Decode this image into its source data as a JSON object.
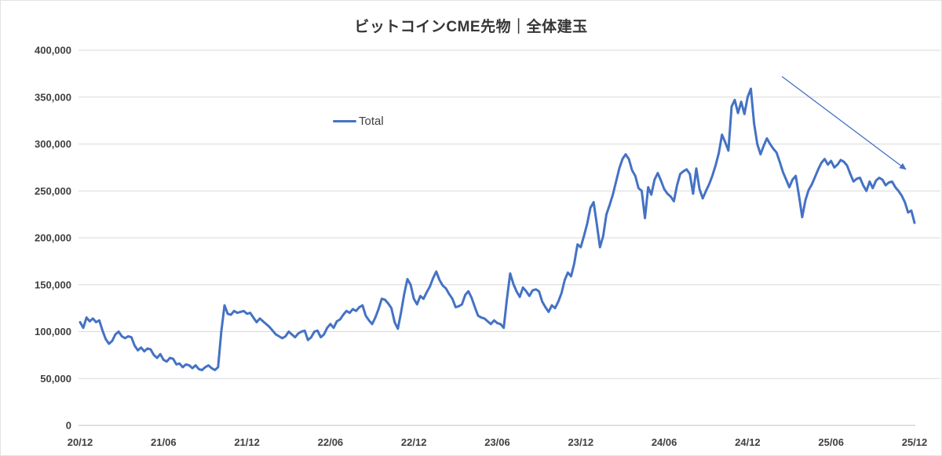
{
  "chart": {
    "background": "#ffffff",
    "colors": {
      "series_line": "#4472C4",
      "gridline": "#d9d9d9",
      "axis_line": "#bfbfbf",
      "tick_label": "#404040",
      "title": "#363636",
      "annotation_arrow": "#4472C4"
    }
  },
  "chart_data": {
    "type": "line",
    "title": "ビットコインCME先物｜全体建玉",
    "xlabel": "",
    "ylabel": "",
    "ylim": [
      0,
      400000
    ],
    "grid": "horizontal",
    "legend_position": "inside-top-left-of-center",
    "y_ticks": [
      0,
      50000,
      100000,
      150000,
      200000,
      250000,
      300000,
      350000,
      400000
    ],
    "x_tick_labels": [
      "20/12",
      "21/06",
      "21/12",
      "22/06",
      "22/12",
      "23/06",
      "23/12",
      "24/06",
      "24/12",
      "25/06",
      "25/12"
    ],
    "x_tick_every": 26,
    "x_unit": "week (YY/MM)",
    "series": [
      {
        "name": "Total",
        "color": "#4472C4",
        "values": [
          110000,
          104000,
          115000,
          111000,
          114000,
          110000,
          112000,
          101000,
          92000,
          87000,
          90000,
          97000,
          100000,
          95000,
          93000,
          95000,
          94000,
          85000,
          80000,
          83000,
          79000,
          82000,
          81000,
          75000,
          72000,
          76000,
          70000,
          68000,
          72000,
          71000,
          65000,
          66000,
          62000,
          65000,
          64000,
          61000,
          64000,
          60000,
          59000,
          62000,
          64000,
          61000,
          59000,
          62000,
          100000,
          128000,
          119000,
          118000,
          122000,
          120000,
          121000,
          122000,
          119000,
          120000,
          115000,
          110000,
          114000,
          111000,
          108000,
          105000,
          101000,
          97000,
          95000,
          93000,
          95000,
          100000,
          97000,
          94000,
          98000,
          100000,
          101000,
          91000,
          94000,
          100000,
          101000,
          94000,
          97000,
          104000,
          108000,
          104000,
          111000,
          113000,
          118000,
          122000,
          120000,
          124000,
          122000,
          126000,
          128000,
          117000,
          112000,
          108000,
          115000,
          124000,
          135000,
          134000,
          130000,
          125000,
          110000,
          103000,
          120000,
          140000,
          156000,
          150000,
          135000,
          129000,
          138000,
          135000,
          142000,
          148000,
          157000,
          164000,
          155000,
          149000,
          146000,
          140000,
          135000,
          126000,
          127000,
          129000,
          139000,
          143000,
          136000,
          126000,
          117000,
          115000,
          114000,
          111000,
          108000,
          112000,
          109000,
          108000,
          104000,
          135000,
          162000,
          151000,
          143000,
          137000,
          147000,
          143000,
          138000,
          144000,
          145000,
          143000,
          132000,
          126000,
          121000,
          128000,
          125000,
          132000,
          141000,
          155000,
          163000,
          159000,
          173000,
          193000,
          190000,
          202000,
          215000,
          232000,
          238000,
          215000,
          190000,
          202000,
          225000,
          235000,
          246000,
          260000,
          274000,
          284000,
          289000,
          284000,
          272000,
          266000,
          253000,
          250000,
          221000,
          254000,
          246000,
          262000,
          269000,
          261000,
          252000,
          247000,
          244000,
          239000,
          256000,
          268000,
          271000,
          273000,
          268000,
          247000,
          274000,
          252000,
          242000,
          250000,
          257000,
          266000,
          277000,
          290000,
          310000,
          302000,
          293000,
          340000,
          347000,
          333000,
          345000,
          332000,
          350000,
          359000,
          322000,
          300000,
          289000,
          298000,
          306000,
          300000,
          295000,
          291000,
          281000,
          270000,
          262000,
          254000,
          262000,
          266000,
          245000,
          222000,
          240000,
          251000,
          257000,
          265000,
          273000,
          280000,
          284000,
          278000,
          282000,
          275000,
          278000,
          283000,
          281000,
          277000,
          268000,
          260000,
          263000,
          264000,
          256000,
          250000,
          260000,
          253000,
          261000,
          264000,
          262000,
          256000,
          259000,
          260000,
          254000,
          250000,
          245000,
          238000,
          227000,
          229000,
          216000
        ]
      }
    ],
    "annotations": [
      {
        "type": "arrow",
        "meaning": "downtrend",
        "from": {
          "index": 218.7,
          "value": 372000
        },
        "to": {
          "index": 257.3,
          "value": 273000
        }
      }
    ]
  }
}
